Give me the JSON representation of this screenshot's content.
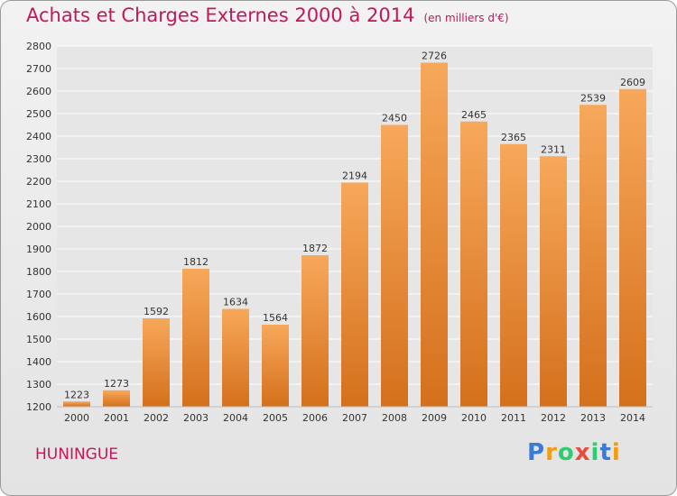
{
  "title": "Achats et Charges Externes 2000 à 2014",
  "subtitle": "(en milliers d'€)",
  "location": "HUNINGUE",
  "brand": "Proxiti",
  "colors": {
    "title": "#c2185b",
    "bar_top": "#f7a85a",
    "bar_bottom": "#d4701c",
    "grid": "#ffffff"
  },
  "chart_data": {
    "type": "bar",
    "title": "Achats et Charges Externes 2000 à 2014",
    "subtitle": "(en milliers d'€)",
    "xlabel": "",
    "ylabel": "",
    "categories": [
      "2000",
      "2001",
      "2002",
      "2003",
      "2004",
      "2005",
      "2006",
      "2007",
      "2008",
      "2009",
      "2010",
      "2011",
      "2012",
      "2013",
      "2014"
    ],
    "values": [
      1223,
      1273,
      1592,
      1812,
      1634,
      1564,
      1872,
      2194,
      2450,
      2726,
      2465,
      2365,
      2311,
      2539,
      2609
    ],
    "ylim": [
      1200,
      2800
    ],
    "yticks": [
      1200,
      1300,
      1400,
      1500,
      1600,
      1700,
      1800,
      1900,
      2000,
      2100,
      2200,
      2300,
      2400,
      2500,
      2600,
      2700,
      2800
    ],
    "grid": true,
    "legend": "none"
  }
}
